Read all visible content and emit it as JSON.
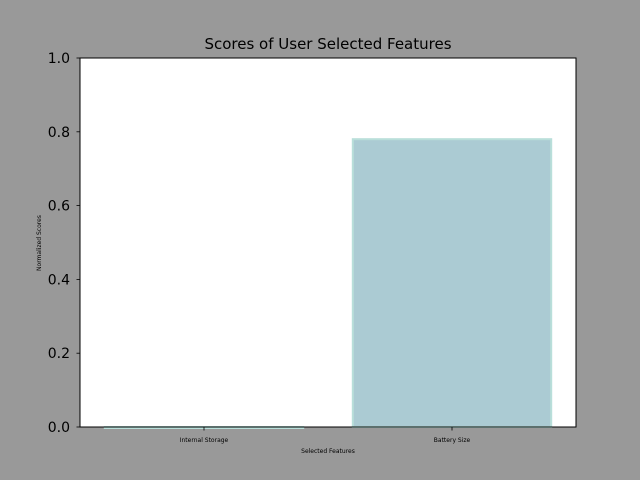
{
  "chart_data": {
    "type": "bar",
    "title": "Scores of User Selected Features",
    "xlabel": "Selected Features",
    "ylabel": "Normalized Scores",
    "categories": [
      "Internal Storage",
      "Battery Size"
    ],
    "values": [
      0.0,
      0.78
    ],
    "ylim": [
      0,
      1.0
    ],
    "yticks": [
      "0.0",
      "0.2",
      "0.4",
      "0.6",
      "0.8",
      "1.0"
    ],
    "bar_color": "#abcbd3",
    "bar_edge_color": "#b9dfda",
    "figure_background": "#999999",
    "plot_background": "#ffffff",
    "grid": false,
    "legend": "none"
  }
}
